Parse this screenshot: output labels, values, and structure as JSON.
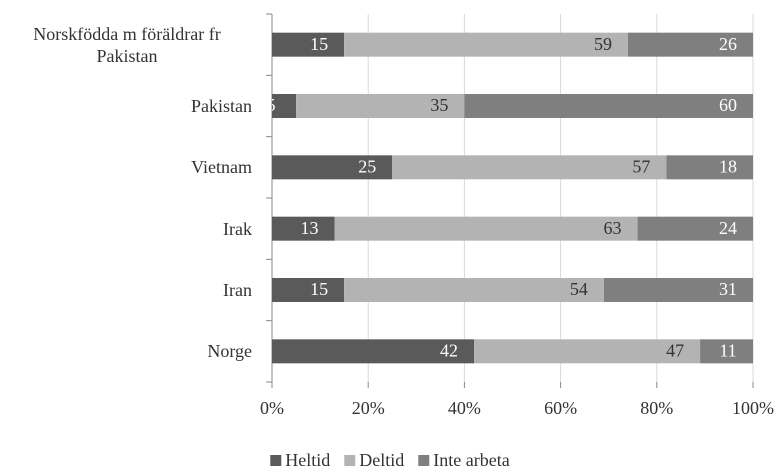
{
  "chart_data": {
    "type": "stacked-barh",
    "categories": [
      "Norskfödda m föräldrar fr Pakistan",
      "Pakistan",
      "Vietnam",
      "Irak",
      "Iran",
      "Norge"
    ],
    "series": [
      {
        "name": "Heltid",
        "color": "#5a5a5a",
        "values": [
          15,
          5,
          25,
          13,
          15,
          42
        ]
      },
      {
        "name": "Deltid",
        "color": "#b3b3b3",
        "values": [
          59,
          35,
          57,
          63,
          54,
          47
        ]
      },
      {
        "name": "Inte arbeta",
        "color": "#7f7f7f",
        "values": [
          26,
          60,
          18,
          24,
          31,
          11
        ]
      }
    ],
    "xlim": [
      0,
      100
    ],
    "xticks": [
      {
        "value": 0,
        "label": "0%"
      },
      {
        "value": 20,
        "label": "20%"
      },
      {
        "value": 40,
        "label": "40%"
      },
      {
        "value": 60,
        "label": "60%"
      },
      {
        "value": 80,
        "label": "80%"
      },
      {
        "value": 100,
        "label": "100%"
      }
    ],
    "grid": true,
    "legend": "bottom"
  }
}
